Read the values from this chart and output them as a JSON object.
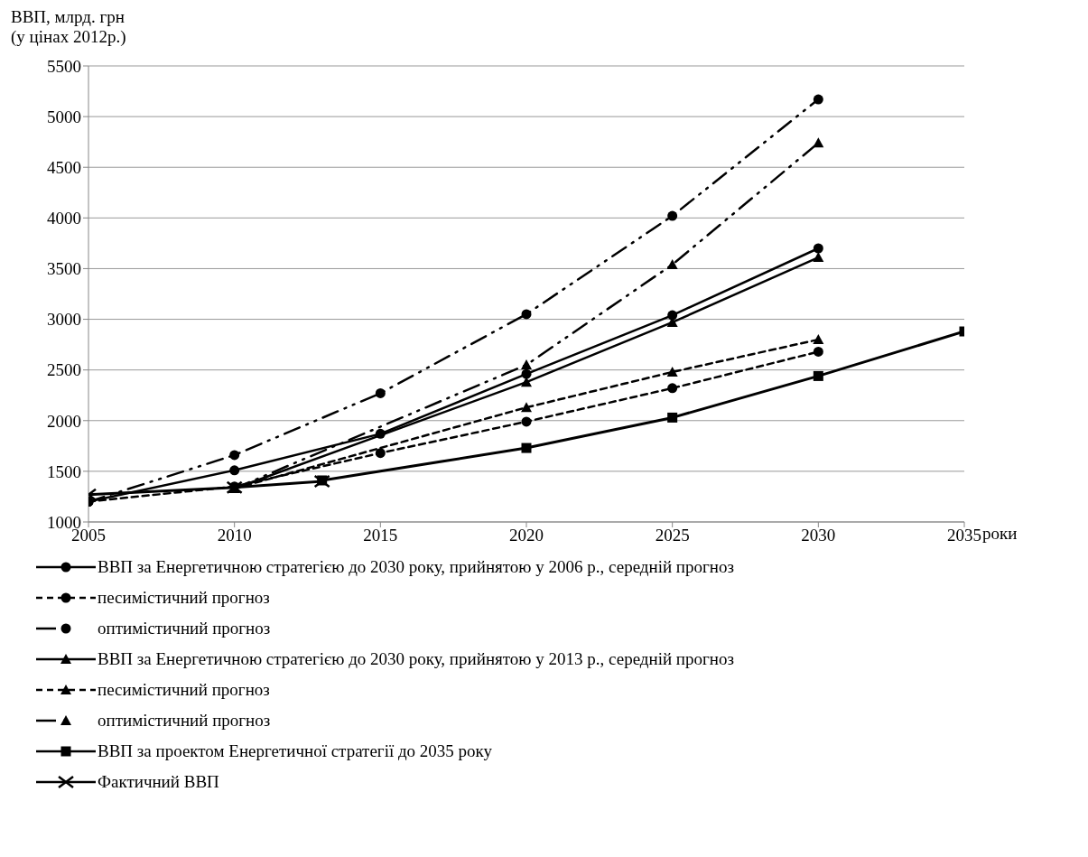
{
  "chart_data": {
    "type": "line",
    "ylabel": "ВВП, млрд. грн\n(у цінах 2012р.)",
    "xlabel": "роки",
    "xlim": [
      2005,
      2035
    ],
    "xticks": [
      2005,
      2010,
      2015,
      2020,
      2025,
      2030,
      2035
    ],
    "ylim": [
      1000,
      5500
    ],
    "yticks": [
      1000,
      1500,
      2000,
      2500,
      3000,
      3500,
      4000,
      4500,
      5000,
      5500
    ],
    "grid": "y",
    "legend": "bottom",
    "series": [
      {
        "name": "ВВП за Енергетичною стратегією до 2030 року, прийнятою у 2006 р., середній прогноз",
        "color": "#000000",
        "marker": "circle",
        "line_style": "solid",
        "x": [
          2005,
          2010,
          2015,
          2020,
          2025,
          2030
        ],
        "values": [
          1200,
          1510,
          1870,
          2460,
          3040,
          3700
        ]
      },
      {
        "name": "песимістичний прогноз",
        "color": "#000000",
        "marker": "circle",
        "line_style": "dashed",
        "x": [
          2005,
          2010,
          2015,
          2020,
          2025,
          2030
        ],
        "values": [
          1200,
          1350,
          1680,
          1990,
          2320,
          2680
        ]
      },
      {
        "name": "оптимістичний прогноз",
        "color": "#000000",
        "marker": "circle",
        "line_style": "dotted",
        "x": [
          2005,
          2010,
          2015,
          2020,
          2025,
          2030
        ],
        "values": [
          1200,
          1660,
          2270,
          3050,
          4020,
          5170
        ]
      },
      {
        "name": "ВВП за Енергетичною стратегією до 2030 року, прийнятою у 2013 р., середній прогноз",
        "color": "#000000",
        "marker": "triangle",
        "line_style": "solid",
        "x": [
          2010,
          2020,
          2025,
          2030
        ],
        "values": [
          1330,
          2380,
          2970,
          3610
        ]
      },
      {
        "name": "песимістичний прогноз",
        "color": "#000000",
        "marker": "triangle",
        "line_style": "dashed",
        "x": [
          2010,
          2020,
          2025,
          2030
        ],
        "values": [
          1330,
          2130,
          2480,
          2800
        ]
      },
      {
        "name": "оптимістичний прогноз",
        "color": "#000000",
        "marker": "triangle",
        "line_style": "dotted",
        "x": [
          2010,
          2020,
          2025,
          2030
        ],
        "values": [
          1330,
          2550,
          3540,
          4740
        ]
      },
      {
        "name": "ВВП за проектом Енергетичної стратегії до 2035 року",
        "color": "#000000",
        "marker": "square",
        "line_style": "solid",
        "x": [
          2013,
          2020,
          2025,
          2030,
          2035
        ],
        "values": [
          1410,
          1730,
          2030,
          2440,
          2880
        ]
      },
      {
        "name": "Фактичний ВВП",
        "color": "#000000",
        "marker": "cross",
        "line_style": "solid",
        "x": [
          2005,
          2010,
          2013
        ],
        "values": [
          1270,
          1340,
          1400
        ]
      }
    ]
  }
}
